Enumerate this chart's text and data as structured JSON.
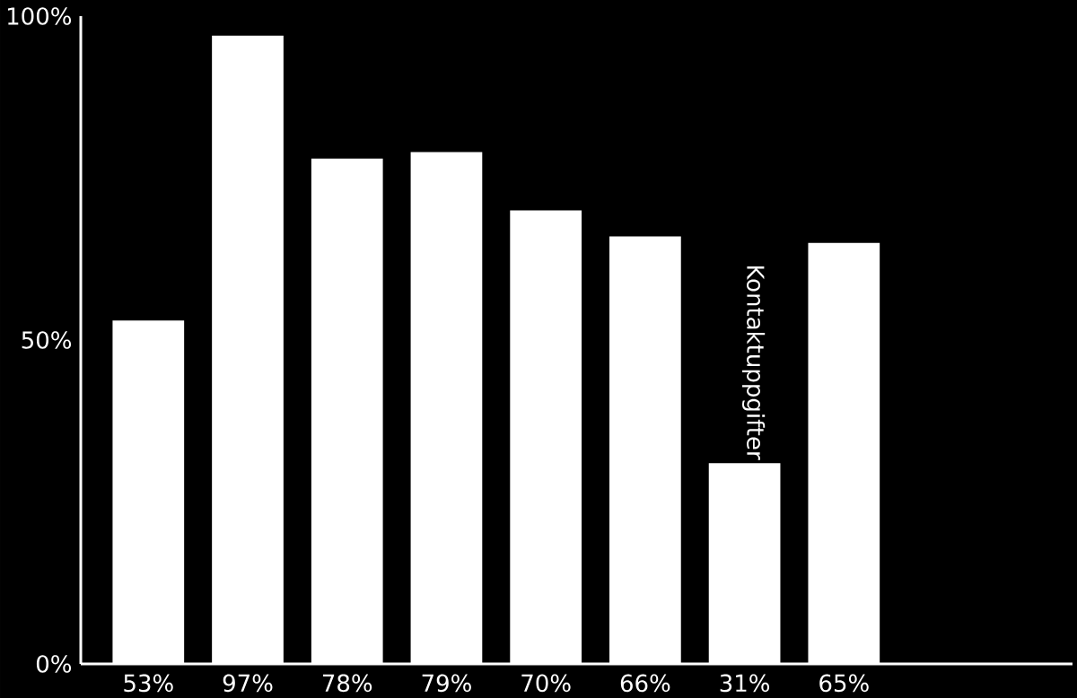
{
  "chart_data": {
    "type": "bar",
    "categories": [
      null,
      null,
      null,
      null,
      null,
      null,
      null,
      null
    ],
    "values": [
      53,
      97,
      78,
      79,
      70,
      66,
      31,
      65
    ],
    "value_labels": [
      "53%",
      "97%",
      "78%",
      "79%",
      "70%",
      "66%",
      "31%",
      "65%"
    ],
    "color": "#ffffff",
    "ylim": [
      0,
      100
    ],
    "yticks": [
      {
        "value": 0,
        "label": "0%"
      },
      {
        "value": 50,
        "label": "50%"
      },
      {
        "value": 100,
        "label": "100%"
      }
    ],
    "annotations": [
      "Kontaktuppgifter"
    ]
  }
}
